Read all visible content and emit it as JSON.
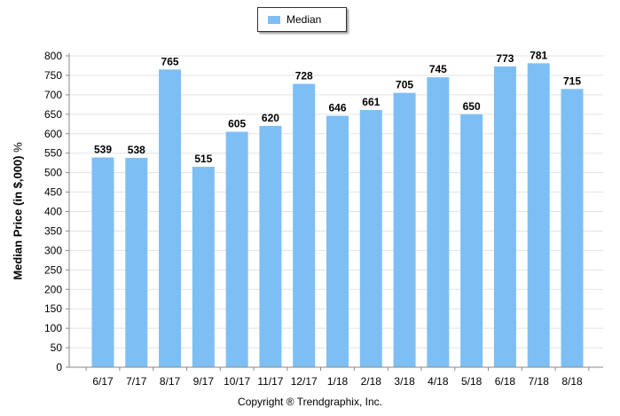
{
  "chart_data": {
    "type": "bar",
    "categories": [
      "6/17",
      "7/17",
      "8/17",
      "9/17",
      "10/17",
      "11/17",
      "12/17",
      "1/18",
      "2/18",
      "3/18",
      "4/18",
      "5/18",
      "6/18",
      "7/18",
      "8/18"
    ],
    "series": [
      {
        "name": "Median",
        "values": [
          539,
          538,
          765,
          515,
          605,
          620,
          728,
          646,
          661,
          705,
          745,
          650,
          773,
          781,
          715
        ]
      }
    ],
    "ylabel": "Median Price (in $,000)",
    "ylabel_unit": "%",
    "ylim": [
      0,
      800
    ],
    "ytick_step": 50,
    "grid": true,
    "legend_position": "top-center",
    "bar_color": "#7dbff5",
    "data_labels": true
  },
  "footer": {
    "copyright": "Copyright ® Trendgraphix, Inc."
  }
}
